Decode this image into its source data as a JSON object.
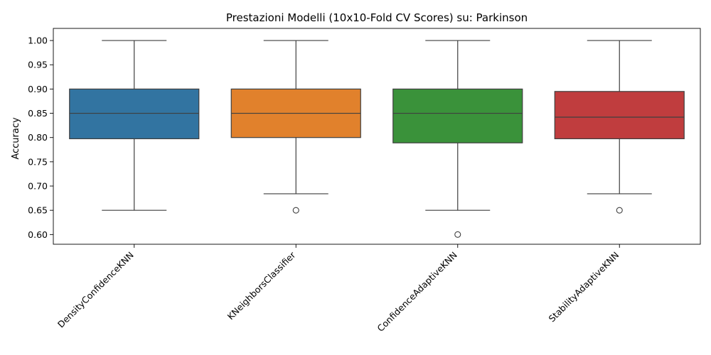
{
  "chart_data": {
    "type": "box",
    "title": "Prestazioni Modelli (10x10-Fold CV Scores) su: Parkinson",
    "xlabel": "",
    "ylabel": "Accuracy",
    "ylim": [
      0.58,
      1.025
    ],
    "yticks": [
      "0.60",
      "0.65",
      "0.70",
      "0.75",
      "0.80",
      "0.85",
      "0.90",
      "0.95",
      "1.00"
    ],
    "grid": false,
    "categories": [
      "DensityConfidenceKNN",
      "KNeighborsClassifier",
      "ConfidenceAdaptiveKNN",
      "StabilityAdaptiveKNN"
    ],
    "boxes": [
      {
        "name": "DensityConfidenceKNN",
        "color": "#3274a1",
        "whisker_low": 0.65,
        "q1": 0.7975,
        "median": 0.85,
        "q3": 0.9,
        "whisker_high": 1.0,
        "outliers": []
      },
      {
        "name": "KNeighborsClassifier",
        "color": "#e1812c",
        "whisker_low": 0.684,
        "q1": 0.8,
        "median": 0.85,
        "q3": 0.9,
        "whisker_high": 1.0,
        "outliers": [
          0.65
        ]
      },
      {
        "name": "ConfidenceAdaptiveKNN",
        "color": "#3a923a",
        "whisker_low": 0.65,
        "q1": 0.789,
        "median": 0.85,
        "q3": 0.9,
        "whisker_high": 1.0,
        "outliers": [
          0.6
        ]
      },
      {
        "name": "StabilityAdaptiveKNN",
        "color": "#c03d3e",
        "whisker_low": 0.684,
        "q1": 0.7975,
        "median": 0.842,
        "q3": 0.895,
        "whisker_high": 1.0,
        "outliers": [
          0.65
        ]
      }
    ]
  }
}
